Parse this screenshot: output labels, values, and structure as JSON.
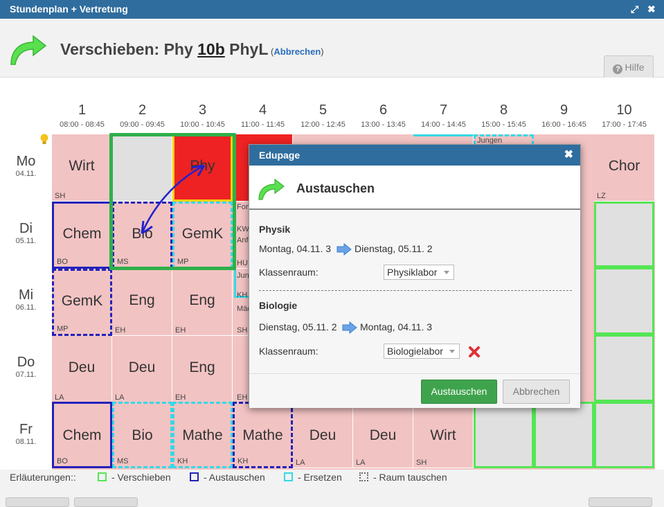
{
  "window": {
    "title": "Stundenplan + Vertretung",
    "maximize_icon": "⤢",
    "close_icon": "✖"
  },
  "header": {
    "prefix": "Verschieben: Phy ",
    "class": "10b",
    "suffix": " PhyL",
    "abort_open": " (",
    "abort_link": "Abbrechen",
    "abort_close": ")",
    "help": "Hilfe"
  },
  "periods": [
    {
      "n": "1",
      "t": "08:00 - 08:45"
    },
    {
      "n": "2",
      "t": "09:00 - 09:45"
    },
    {
      "n": "3",
      "t": "10:00 - 10:45"
    },
    {
      "n": "4",
      "t": "11:00 - 11:45"
    },
    {
      "n": "5",
      "t": "12:00 - 12:45"
    },
    {
      "n": "6",
      "t": "13:00 - 13:45"
    },
    {
      "n": "7",
      "t": "14:00 - 14:45"
    },
    {
      "n": "8",
      "t": "15:00 - 15:45"
    },
    {
      "n": "9",
      "t": "16:00 - 16:45"
    },
    {
      "n": "10",
      "t": "17:00 - 17:45"
    }
  ],
  "days": [
    {
      "d": "Mo",
      "dt": "04.11."
    },
    {
      "d": "Di",
      "dt": "05.11."
    },
    {
      "d": "Mi",
      "dt": "06.11."
    },
    {
      "d": "Do",
      "dt": "07.11."
    },
    {
      "d": "Fr",
      "dt": "08.11."
    }
  ],
  "cells": {
    "mo1": {
      "s": "Wirt",
      "t": "SH"
    },
    "mo3": {
      "s": "Phy",
      "t": ""
    },
    "mo8": {
      "s": "",
      "t": "Jungen"
    },
    "mo10": {
      "s": "Chor",
      "t": "LZ"
    },
    "di1": {
      "s": "Chem",
      "t": "BO"
    },
    "di2": {
      "s": "Bio",
      "t": "MS"
    },
    "di3": {
      "s": "GemK",
      "t": "MP"
    },
    "di4": {
      "s": "",
      "t": "HU",
      "top1": "Fon",
      "top2": "KW",
      "top3": "Anf"
    },
    "mi1": {
      "s": "GemK",
      "t": "MP"
    },
    "mi2": {
      "s": "Eng",
      "t": "EH"
    },
    "mi3": {
      "s": "Eng",
      "t": "EH"
    },
    "mi4": {
      "s": "",
      "t": "SH",
      "top1": "Jun",
      "top2": "KH",
      "top3": "Mäd"
    },
    "do1": {
      "s": "Deu",
      "t": "LA"
    },
    "do2": {
      "s": "Deu",
      "t": "LA"
    },
    "do3": {
      "s": "Eng",
      "t": "EH"
    },
    "do4": {
      "s": "",
      "t": "EH"
    },
    "fr1": {
      "s": "Chem",
      "t": "BO"
    },
    "fr2": {
      "s": "Bio",
      "t": "MS"
    },
    "fr3": {
      "s": "Mathe",
      "t": "KH"
    },
    "fr4": {
      "s": "Mathe",
      "t": "KH"
    },
    "fr5": {
      "s": "Deu",
      "t": "LA"
    },
    "fr6": {
      "s": "Deu",
      "t": "LA"
    },
    "fr7": {
      "s": "Wirt",
      "t": "SH"
    }
  },
  "legend": {
    "title": "Erläuterungen::",
    "move": "- Verschieben",
    "swap": "- Austauschen",
    "replace": "- Ersetzen",
    "room": "- Raum tauschen"
  },
  "dialog": {
    "title": "Edupage",
    "heading": "Austauschen",
    "s1_subject": "Physik",
    "s1_from": "Montag, 04.11. 3",
    "s1_to": "Dienstag, 05.11. 2",
    "s1_room_label": "Klassenraum:",
    "s1_room": "Physiklabor",
    "s2_subject": "Biologie",
    "s2_from": "Dienstag, 05.11. 2",
    "s2_to": "Montag, 04.11. 3",
    "s2_room_label": "Klassenraum:",
    "s2_room": "Biologielabor",
    "ok": "Austauschen",
    "cancel": "Abbrechen"
  },
  "colors": {
    "move": "#55e655",
    "swap": "#2222bb",
    "replace": "#33d9e6",
    "selected": "#ee2222",
    "lesson": "#f2c3c3",
    "accent": "#2f6d9e"
  }
}
